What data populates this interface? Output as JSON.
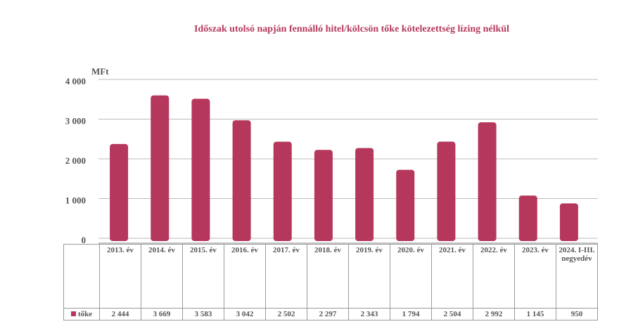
{
  "chart_data": {
    "type": "bar",
    "title": "Időszak utolsó napján fennálló hitel/kölcsön tőke kötelezettség lízing nélkül",
    "y_label": "MFt",
    "categories": [
      "2013. év",
      "2014. év",
      "2015. év",
      "2016. év",
      "2017. év",
      "2018. év",
      "2019. év",
      "2020. év",
      "2021. év",
      "2022. év",
      "2023. év",
      "2024. I-III. negyedév"
    ],
    "series": [
      {
        "name": "tőke",
        "color": "#b5385c",
        "values": [
          2444,
          3669,
          3583,
          3042,
          2502,
          2297,
          2343,
          1794,
          2504,
          2992,
          1145,
          950
        ],
        "value_labels": [
          "2 444",
          "3 669",
          "3 583",
          "3 042",
          "2 502",
          "2 297",
          "2 343",
          "1 794",
          "2 504",
          "2 992",
          "1 145",
          "950"
        ]
      }
    ],
    "ylim": [
      0,
      4000
    ],
    "yticks": [
      0,
      {
        "value": 1000,
        "label": "1 000"
      },
      {
        "value": 2000,
        "label": "2 000"
      },
      {
        "value": 3000,
        "label": "3 000"
      },
      {
        "value": 4000,
        "label": "4 000"
      }
    ],
    "grid": true
  }
}
